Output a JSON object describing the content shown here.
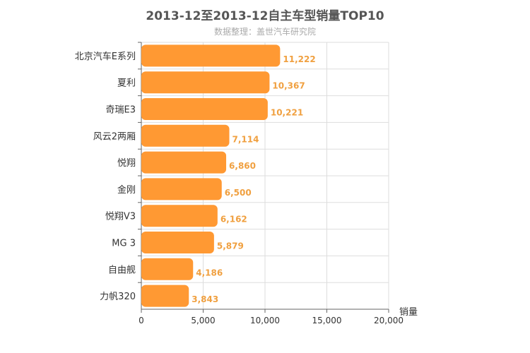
{
  "chart_data": {
    "type": "bar",
    "orientation": "horizontal",
    "title": "2013-12至2013-12自主车型销量TOP10",
    "subtitle": "数据整理：盖世汽车研究院",
    "xlabel": "销量",
    "categories": [
      "北京汽车E系列",
      "夏利",
      "奇瑞E3",
      "风云2两厢",
      "悦翔",
      "金刚",
      "悦翔V3",
      "MG 3",
      "自由舰",
      "力帆320"
    ],
    "values": [
      11222,
      10367,
      10221,
      7114,
      6860,
      6500,
      6162,
      5879,
      4186,
      3843
    ],
    "value_labels": [
      "11,222",
      "10,367",
      "10,221",
      "7,114",
      "6,860",
      "6,500",
      "6,162",
      "5,879",
      "4,186",
      "3,843"
    ],
    "xlim": [
      0,
      20000
    ],
    "xticks": [
      0,
      5000,
      10000,
      15000,
      20000
    ],
    "xtick_labels": [
      "0",
      "5,000",
      "10,000",
      "15,000",
      "20,000"
    ],
    "grid": true,
    "bar_color": "#ff9933",
    "label_color": "#f0a040"
  }
}
